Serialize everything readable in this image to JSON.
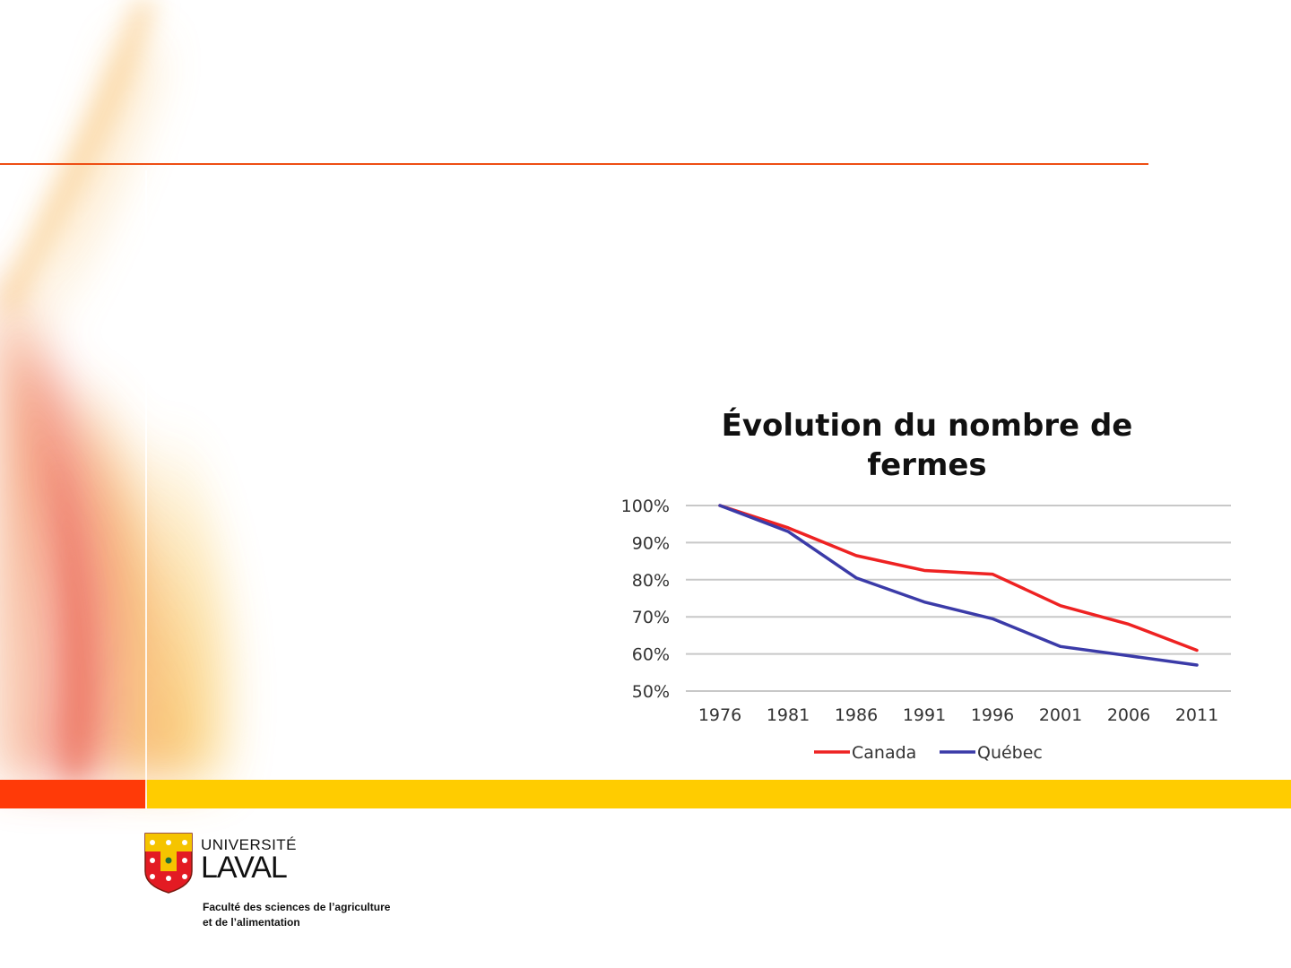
{
  "slide": {
    "accent_colors": {
      "rule": "#ee4e14",
      "bar_red": "#ff3a08",
      "bar_yellow": "#ffcc00"
    }
  },
  "logo": {
    "university_line1": "UNIVERSITÉ",
    "university_line2": "LAVAL",
    "faculty_line1": "Faculté des sciences de l’agriculture",
    "faculty_line2": "et de l’alimentation"
  },
  "chart_data": {
    "type": "line",
    "title_lines": [
      "Évolution du nombre de",
      "fermes"
    ],
    "categories": [
      "1976",
      "1981",
      "1986",
      "1991",
      "1996",
      "2001",
      "2006",
      "2011"
    ],
    "series": [
      {
        "name": "Canada",
        "color": "#ee2222",
        "values": [
          100,
          94,
          86.5,
          82.5,
          81.5,
          73,
          68,
          61
        ]
      },
      {
        "name": "Québec",
        "color": "#3b3ba8",
        "values": [
          100,
          93,
          80.5,
          74,
          69.5,
          62,
          59.5,
          57
        ]
      }
    ],
    "ylim": [
      50,
      100
    ],
    "yticks": [
      "50%",
      "60%",
      "70%",
      "80%",
      "90%",
      "100%"
    ],
    "ytick_values": [
      50,
      60,
      70,
      80,
      90,
      100
    ],
    "grid": true,
    "legend": "bottom"
  }
}
